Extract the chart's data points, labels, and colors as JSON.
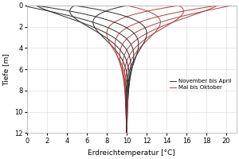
{
  "xlabel": "Erdreichtemperatur [°C]",
  "ylabel": "Tiefe [m]",
  "xlim": [
    0,
    21
  ],
  "ylim": [
    12,
    0
  ],
  "mean_temp": 10.0,
  "amplitude": 10.5,
  "depth_max": 12.0,
  "damping_depth": 2.0,
  "phase_lag_per_meter": 0.5,
  "months_cold": [
    11,
    12,
    1,
    2,
    3,
    4
  ],
  "months_warm": [
    5,
    6,
    7,
    8,
    9,
    10
  ],
  "color_cold": "#2d2d2d",
  "color_warm": "#b04040",
  "legend_cold": "November bis April",
  "legend_warm": "Mai bis Oktober",
  "grid_color": "#d8d8d8",
  "xticks": [
    0,
    2,
    4,
    6,
    8,
    10,
    12,
    14,
    16,
    18,
    20
  ],
  "yticks": [
    0,
    2,
    4,
    6,
    8,
    10,
    12
  ],
  "figwidth": 3.0,
  "figheight": 2.0,
  "dpi": 100
}
